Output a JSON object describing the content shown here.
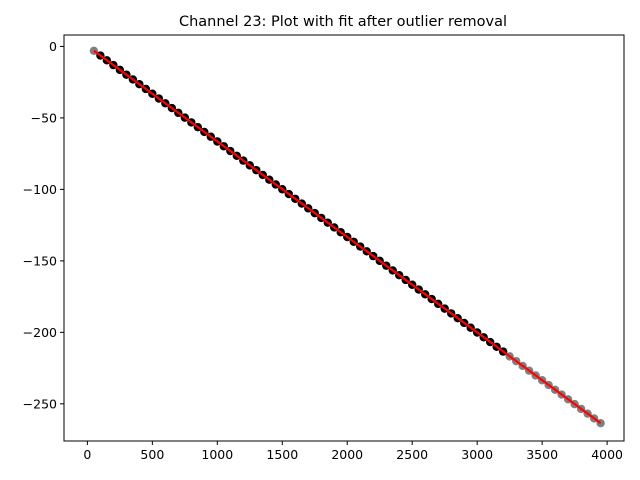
{
  "chart_data": {
    "type": "scatter",
    "title": "Channel 23: Plot with fit after outlier removal",
    "xlabel": "",
    "ylabel": "",
    "xlim": [
      -180,
      4130
    ],
    "ylim": [
      -276,
      8
    ],
    "xticks": [
      0,
      500,
      1000,
      1500,
      2000,
      2500,
      3000,
      3500,
      4000
    ],
    "xtick_labels": [
      "0",
      "500",
      "1000",
      "1500",
      "2000",
      "2500",
      "3000",
      "3500",
      "4000"
    ],
    "yticks": [
      0,
      -50,
      -100,
      -150,
      -200,
      -250
    ],
    "ytick_labels": [
      "0",
      "−50",
      "−100",
      "−150",
      "−200",
      "−250"
    ],
    "grid": false,
    "legend": "none",
    "series": [
      {
        "role": "removed outliers",
        "color": "#808080",
        "marker": "circle",
        "x_start": 50,
        "x_end": 3950,
        "x_step": 50,
        "slope": -0.0668,
        "intercept": 0.3,
        "x_included": [
          [
            50,
            50
          ],
          [
            3250,
            3950
          ]
        ]
      },
      {
        "role": "data points kept",
        "color": "#000000",
        "marker": "circle",
        "x_start": 100,
        "x_end": 3200,
        "x_step": 50,
        "slope": -0.0668,
        "intercept": 0.3
      },
      {
        "role": "linear fit",
        "type": "line",
        "color": "#ff0000",
        "x": [
          50,
          3950
        ],
        "y": [
          -3.0,
          -263.5
        ]
      }
    ]
  }
}
